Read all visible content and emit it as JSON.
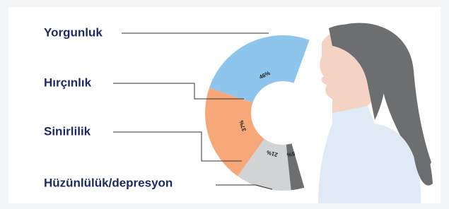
{
  "chart_data": {
    "type": "donut",
    "categories": [
      "Yorgunluk",
      "Hırçınlık",
      "Sinirlilik",
      "Hüzünlülük/depresyon"
    ],
    "values": [
      46,
      37,
      21,
      5
    ],
    "value_labels": [
      "46%",
      "37%",
      "21%",
      "5%"
    ],
    "colors": [
      "#8ec5ec",
      "#f6a878",
      "#d2d3d5",
      "#6d6e70"
    ]
  }
}
